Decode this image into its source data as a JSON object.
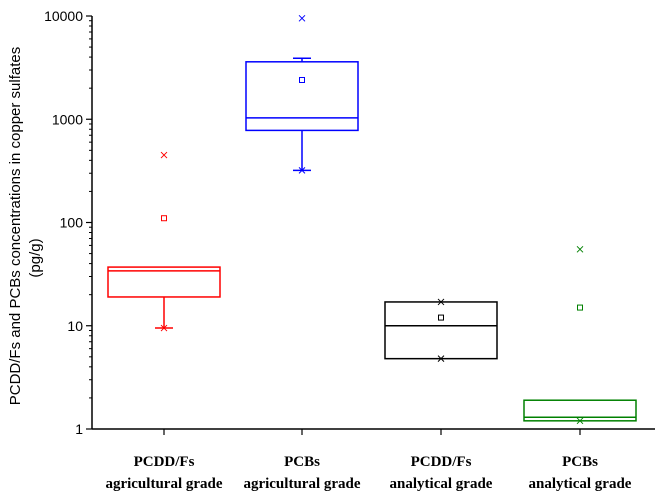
{
  "chart_data": {
    "type": "box",
    "ylabel_line1": "PCDD/Fs and PCBs concentrations in copper sulfates",
    "ylabel_line2": "(pg/g)",
    "yscale": "log",
    "ylim": [
      1,
      10000
    ],
    "yticks": [
      1,
      10,
      100,
      1000,
      10000
    ],
    "ytick_labels": [
      "1",
      "10",
      "100",
      "1000",
      "10000"
    ],
    "grid": false,
    "legend": "none",
    "categories": [
      {
        "line1": "PCDD/Fs",
        "line2": "agricultural grade"
      },
      {
        "line1": "PCBs",
        "line2": "agricultural grade"
      },
      {
        "line1": "PCDD/Fs",
        "line2": "analytical grade"
      },
      {
        "line1": "PCBs",
        "line2": "analytical grade"
      }
    ],
    "boxes": [
      {
        "color": "#ff0000",
        "whisker_low": 9.5,
        "q1": 19,
        "median": 34,
        "q3": 37,
        "whisker_high": 37,
        "mean": 110,
        "max": 450,
        "min": 9.5
      },
      {
        "color": "#0000ff",
        "whisker_low": 320,
        "q1": 780,
        "median": 1030,
        "q3": 3600,
        "whisker_high": 3900,
        "mean": 2400,
        "max": 9500,
        "min": 320
      },
      {
        "color": "#000000",
        "whisker_low": 4.8,
        "q1": 4.8,
        "median": 10,
        "q3": 17,
        "whisker_high": 17,
        "mean": 12,
        "max": 17,
        "min": 4.8
      },
      {
        "color": "#008000",
        "whisker_low": 1.2,
        "q1": 1.2,
        "median": 1.3,
        "q3": 1.9,
        "whisker_high": 1.9,
        "mean": 15,
        "max": 55,
        "min": 1.2
      }
    ]
  }
}
